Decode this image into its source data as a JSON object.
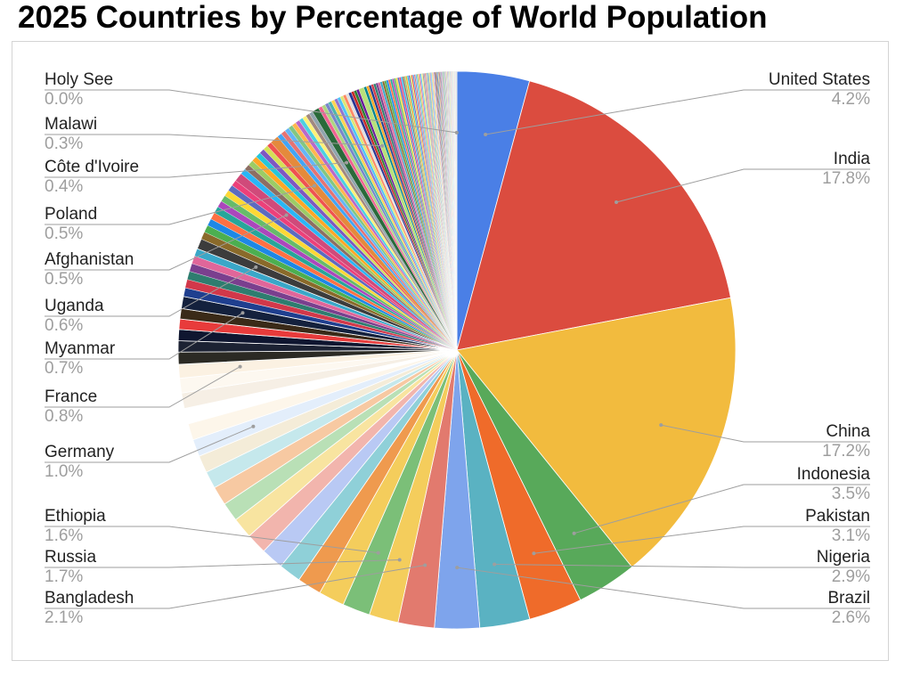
{
  "title": "2025 Countries by Percentage of World Population",
  "chart_data": {
    "type": "pie",
    "title": "2025 Countries by Percentage of World Population",
    "legend": "none",
    "labeled_slices": [
      {
        "name": "United States",
        "value": 4.2,
        "label": "4.2%",
        "color": "#4a7fe6"
      },
      {
        "name": "India",
        "value": 17.8,
        "label": "17.8%",
        "color": "#db4c3f"
      },
      {
        "name": "China",
        "value": 17.2,
        "label": "17.2%",
        "color": "#f2bb3e"
      },
      {
        "name": "Indonesia",
        "value": 3.5,
        "label": "3.5%",
        "color": "#58a95a"
      },
      {
        "name": "Pakistan",
        "value": 3.1,
        "label": "3.1%",
        "color": "#ef6b2a"
      },
      {
        "name": "Nigeria",
        "value": 2.9,
        "label": "2.9%",
        "color": "#5ab2c2"
      },
      {
        "name": "Brazil",
        "value": 2.6,
        "label": "2.6%",
        "color": "#7ea4ec"
      },
      {
        "name": "Bangladesh",
        "value": 2.1,
        "label": "2.1%",
        "color": "#e27a6e"
      },
      {
        "name": "Russia",
        "value": 1.7,
        "label": "1.7%",
        "color": "#f4cd5c"
      },
      {
        "name": "Ethiopia",
        "value": 1.6,
        "label": "1.6%",
        "color": "#7bbf78"
      },
      {
        "name": "Germany",
        "value": 1.0,
        "label": "1.0%",
        "color": "#e3eefb"
      },
      {
        "name": "France",
        "value": 0.8,
        "label": "0.8%",
        "color": "#fbf1e2"
      },
      {
        "name": "Myanmar",
        "value": 0.7,
        "label": "0.7%",
        "color": "#14213d"
      },
      {
        "name": "Uganda",
        "value": 0.6,
        "label": "0.6%",
        "color": "#3c3c3c"
      },
      {
        "name": "Afghanistan",
        "value": 0.5,
        "label": "0.5%",
        "color": "#d04a7a"
      },
      {
        "name": "Poland",
        "value": 0.5,
        "label": "0.5%",
        "color": "#e48a3c"
      },
      {
        "name": "Côte d'Ivoire",
        "value": 0.4,
        "label": "0.4%",
        "color": "#2a6a3a"
      },
      {
        "name": "Malawi",
        "value": 0.3,
        "label": "0.3%",
        "color": "#b8e07a"
      },
      {
        "name": "Holy See",
        "value": 0.0,
        "label": "0.0%",
        "color": "#9e9e9e"
      }
    ],
    "unlabeled_slices": {
      "description_free": true,
      "wedges_before_germany": [
        1.5,
        1.4,
        1.3,
        1.3,
        1.2,
        1.2,
        1.1,
        1.1,
        1.0,
        1.0
      ],
      "wedges_before_germany_colors": [
        "#f4cd5c",
        "#ef9a4e",
        "#8fd0d8",
        "#b9c9f4",
        "#f2b5ad",
        "#f8e4a0",
        "#b9e0b6",
        "#f7c9a2",
        "#c5e8ec",
        "#f4ecd8"
      ],
      "wedges_after_germany_colors": [
        "#fdf6ea",
        "#ffffff",
        "#f6efe5",
        "#fdf8f0"
      ],
      "wedges_after_germany": [
        0.95,
        0.9,
        0.9,
        0.85
      ],
      "dark_band_colors": [
        "#2b2a24",
        "#1c2233",
        "#0f1630",
        "#e83b3b",
        "#3a2a18"
      ],
      "dark_band": [
        0.7,
        0.65,
        0.65,
        0.6,
        0.6
      ],
      "mid_palette": [
        "#1f3f8f",
        "#d2384a",
        "#2e7d6f",
        "#7a3f8e",
        "#e0669a",
        "#3aa7c8",
        "#8a6a2a",
        "#4caf50",
        "#1e88e5",
        "#ff7043",
        "#26a69a",
        "#ab47bc",
        "#66bb6a",
        "#fdd835",
        "#5c6bc0",
        "#ec407a",
        "#29b6f6",
        "#8d6e63",
        "#9ccc65",
        "#ffa726",
        "#26c6da",
        "#7e57c2",
        "#d4e157",
        "#ef5350",
        "#42a5f5"
      ],
      "tail_palette": [
        "#e57373",
        "#64b5f6",
        "#81c784",
        "#ffb74d",
        "#ba68c8",
        "#4dd0e1",
        "#fff176",
        "#a1887f",
        "#90a4ae",
        "#f06292",
        "#aed581",
        "#7986cb",
        "#4db6ac",
        "#ffd54f",
        "#9575cd",
        "#4fc3f7",
        "#dce775",
        "#ff8a65",
        "#e0e0e0",
        "#283593",
        "#c62828",
        "#2e7d32",
        "#6a1b9a",
        "#00838f",
        "#f9a825"
      ]
    }
  }
}
